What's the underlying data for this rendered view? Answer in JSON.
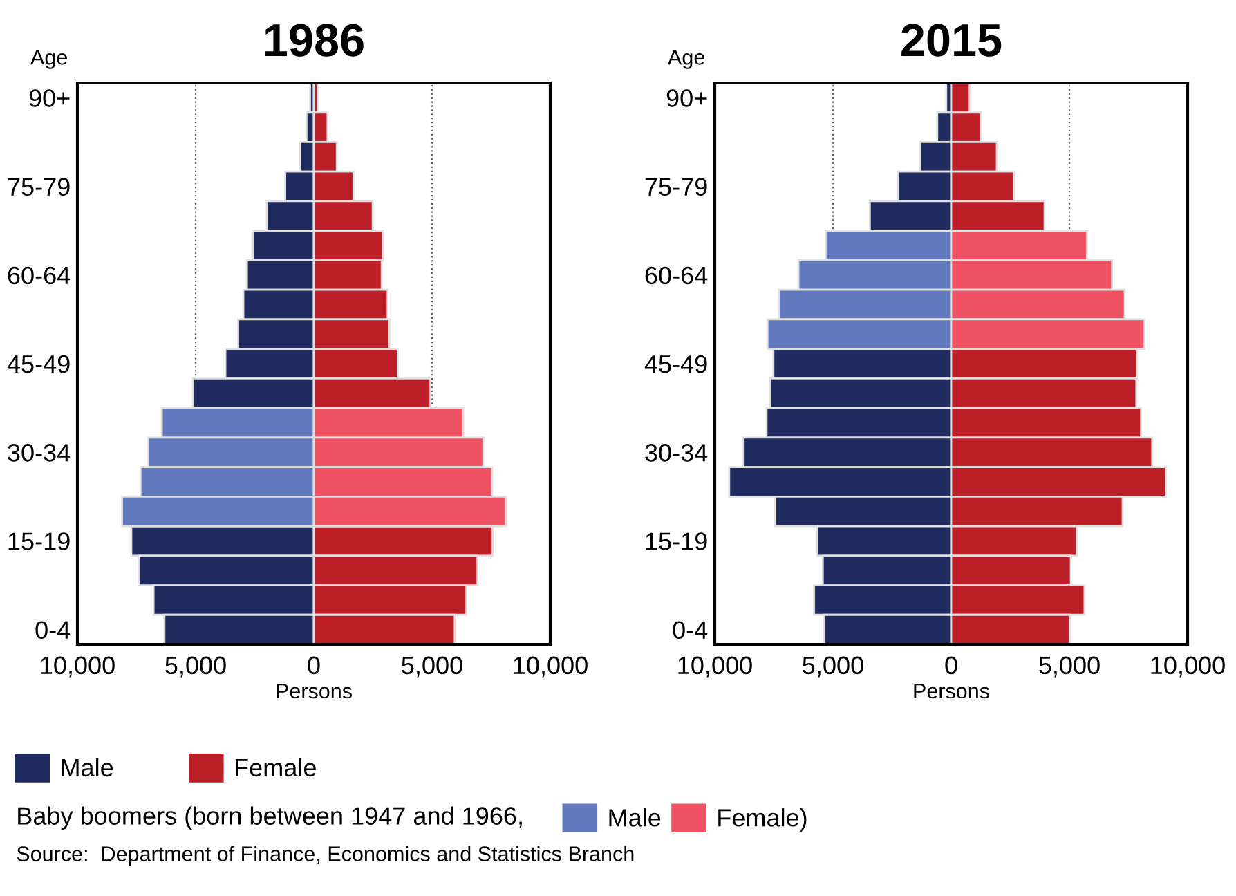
{
  "chart_data": [
    {
      "type": "bar",
      "orientation": "horizontal",
      "stacked": true,
      "title": "1986",
      "xlabel": "Persons",
      "ylabel": "Age",
      "categories": [
        "90+",
        null,
        null,
        "75-79",
        null,
        null,
        "60-64",
        null,
        null,
        "45-49",
        null,
        null,
        "30-34",
        null,
        null,
        "15-19",
        null,
        null,
        "0-4"
      ],
      "series": [
        {
          "name": "Male",
          "color": "#1f2a5e",
          "values": [
            -160,
            -310,
            -570,
            -1210,
            -1990,
            -2570,
            -2830,
            -2980,
            -3200,
            -3740,
            -5110,
            null,
            null,
            null,
            null,
            -7720,
            -7410,
            -6780,
            -6320
          ]
        },
        {
          "name": "Female",
          "color": "#bd1f29",
          "values": [
            160,
            580,
            970,
            1680,
            2490,
            2920,
            2870,
            3120,
            3200,
            3550,
            4930,
            null,
            null,
            null,
            null,
            7560,
            6920,
            6450,
            5960
          ]
        },
        {
          "name": "Male",
          "color": "#627abd",
          "values": [
            null,
            null,
            null,
            null,
            null,
            null,
            null,
            null,
            null,
            null,
            null,
            -6430,
            -7000,
            -7330,
            -8110,
            null,
            null,
            null,
            null
          ]
        },
        {
          "name": "Female)",
          "color": "#ee5263",
          "values": [
            null,
            null,
            null,
            null,
            null,
            null,
            null,
            null,
            null,
            null,
            null,
            6320,
            7170,
            7540,
            8130,
            null,
            null,
            null,
            null
          ]
        }
      ],
      "xlim": [
        -10000,
        10000
      ],
      "xticks": [
        {
          "value": -10000,
          "label": "10,000"
        },
        {
          "value": -5000,
          "label": "5,000"
        },
        0,
        {
          "value": 5000,
          "label": "5,000"
        },
        {
          "value": 10000,
          "label": "10,000"
        }
      ],
      "grid": "x",
      "line_style": "dotted",
      "legend": "bottom",
      "annotations": [
        "Baby boomers (born between 1947 and 1966,",
        "Source:  Department of Finance, Economics and Statistics Branch"
      ]
    },
    {
      "type": "bar",
      "orientation": "horizontal",
      "stacked": true,
      "title": "2015",
      "xlabel": "Persons",
      "ylabel": "Age",
      "categories": [
        "90+",
        null,
        null,
        "75-79",
        null,
        null,
        "60-64",
        null,
        null,
        "45-49",
        null,
        null,
        "30-34",
        null,
        null,
        "15-19",
        null,
        null,
        "0-4"
      ],
      "series": [
        {
          "color": "#1f2a5e",
          "values": [
            -210,
            -590,
            -1310,
            -2250,
            -3440,
            null,
            null,
            null,
            null,
            -7520,
            -7660,
            -7810,
            -8810,
            -9390,
            -7440,
            -5660,
            -5430,
            -5800,
            -5370
          ]
        },
        {
          "color": "#bd1f29",
          "values": [
            780,
            1250,
            1930,
            2660,
            3950,
            null,
            null,
            null,
            null,
            7850,
            7830,
            8030,
            8500,
            9080,
            7250,
            5310,
            5060,
            5640,
            5020
          ]
        },
        {
          "color": "#627abd",
          "values": [
            null,
            null,
            null,
            null,
            null,
            -5310,
            -6460,
            -7290,
            -7770,
            null,
            null,
            null,
            null,
            null,
            null,
            null,
            null,
            null,
            null
          ]
        },
        {
          "color": "#ee5263",
          "values": [
            null,
            null,
            null,
            null,
            null,
            5740,
            6800,
            7340,
            8180,
            null,
            null,
            null,
            null,
            null,
            null,
            null,
            null,
            null,
            null
          ]
        }
      ],
      "xlim": [
        -10000,
        10000
      ],
      "xticks": [
        {
          "value": -10000,
          "label": "10,000"
        },
        {
          "value": -5000,
          "label": "5,000"
        },
        0,
        {
          "value": 5000,
          "label": "5,000"
        },
        {
          "value": 10000,
          "label": "10,000"
        }
      ],
      "grid": "x",
      "line_style": "dotted"
    }
  ]
}
